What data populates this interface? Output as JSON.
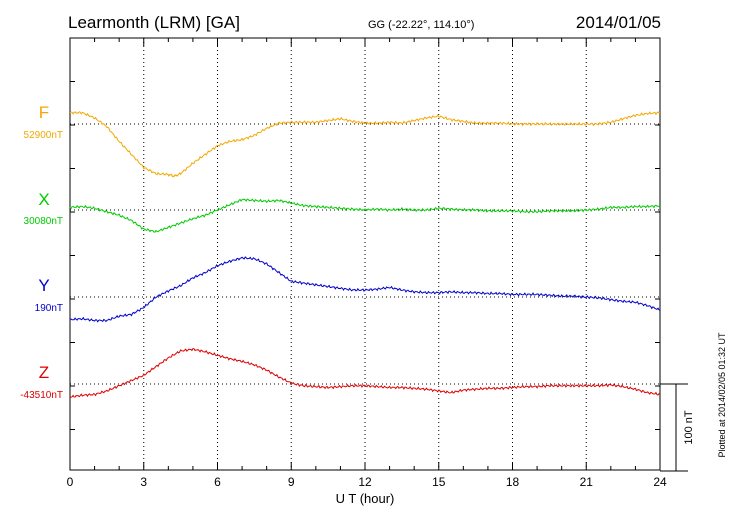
{
  "header": {
    "station": "Learmonth (LRM)  [GA]",
    "coords": "GG (-22.22°, 114.10°)",
    "date": "2014/01/05",
    "plotted": "Plotted at 2014/02/05 01:32 UT"
  },
  "chart_data": {
    "type": "line",
    "xlabel": "U T (hour)",
    "xlim": [
      0,
      24
    ],
    "xticks": [
      "0",
      "3",
      "6",
      "9",
      "12",
      "15",
      "18",
      "21",
      "24"
    ],
    "grid": true,
    "scale_bar_label": "100 nT",
    "scale_bar_nT": 100,
    "series": [
      {
        "name": "F",
        "baseline_label": "52900nT",
        "baseline_nT": 52900,
        "color": "#f2a800",
        "x": [
          0,
          0.5,
          1,
          1.5,
          2,
          2.5,
          3,
          3.5,
          4,
          4.25,
          4.5,
          5,
          5.5,
          6,
          6.5,
          7,
          7.5,
          8,
          8.5,
          9,
          9.5,
          10,
          10.5,
          11,
          11.5,
          12,
          12.5,
          13,
          13.5,
          14,
          14.5,
          15,
          15.5,
          16,
          16.5,
          17,
          17.5,
          18,
          18.5,
          19,
          19.5,
          20,
          20.5,
          21,
          21.5,
          22,
          22.5,
          23,
          23.5,
          24
        ],
        "offset": [
          13,
          13,
          7,
          -3,
          -20,
          -35,
          -50,
          -57,
          -58,
          -60,
          -57,
          -45,
          -35,
          -25,
          -20,
          -18,
          -13,
          -5,
          1,
          2,
          2,
          2,
          4,
          6,
          3,
          1,
          1,
          2,
          1,
          4,
          7,
          9,
          5,
          3,
          1,
          1,
          1,
          0,
          0,
          0,
          0,
          0,
          0,
          0,
          0,
          2,
          6,
          10,
          12,
          13
        ]
      },
      {
        "name": "X",
        "baseline_label": "30080nT",
        "baseline_nT": 30080,
        "color": "#00cc00",
        "x": [
          0,
          0.5,
          1,
          1.5,
          2,
          2.5,
          3,
          3.5,
          4,
          4.5,
          5,
          5.5,
          6,
          6.5,
          7,
          7.5,
          8,
          8.5,
          9,
          9.5,
          10,
          10.5,
          11,
          11.5,
          12,
          12.5,
          13,
          13.5,
          14,
          14.5,
          15,
          15.5,
          16,
          16.5,
          17,
          17.5,
          18,
          18.5,
          19,
          19.5,
          20,
          20.5,
          21,
          21.5,
          22,
          22.5,
          23,
          23.5,
          24
        ],
        "offset": [
          3,
          4,
          2,
          -2,
          -6,
          -12,
          -22,
          -25,
          -20,
          -15,
          -10,
          -6,
          0,
          6,
          12,
          11,
          10,
          11,
          8,
          5,
          4,
          3,
          2,
          1,
          0,
          1,
          0,
          1,
          0,
          0,
          2,
          1,
          0,
          0,
          -1,
          -1,
          -1,
          -2,
          -2,
          -1,
          -1,
          -1,
          0,
          1,
          3,
          3,
          4,
          4,
          5
        ]
      },
      {
        "name": "Y",
        "baseline_label": "190nT",
        "baseline_nT": 190,
        "color": "#0000cc",
        "x": [
          0,
          0.5,
          1,
          1.5,
          2,
          2.5,
          3,
          3.5,
          4,
          4.5,
          5,
          5.5,
          6,
          6.5,
          7,
          7.5,
          8,
          8.5,
          9,
          9.5,
          10,
          10.5,
          11,
          11.5,
          12,
          12.5,
          13,
          13.5,
          14,
          14.5,
          15,
          15.5,
          16,
          16.5,
          17,
          17.5,
          18,
          18.5,
          19,
          19.5,
          20,
          20.5,
          21,
          21.5,
          22,
          22.5,
          23,
          23.5,
          24
        ],
        "offset": [
          -26,
          -25,
          -27,
          -27,
          -22,
          -20,
          -12,
          0,
          7,
          13,
          22,
          28,
          36,
          41,
          45,
          44,
          38,
          28,
          18,
          16,
          14,
          12,
          10,
          8,
          8,
          9,
          11,
          8,
          6,
          5,
          5,
          6,
          5,
          5,
          4,
          4,
          3,
          3,
          3,
          2,
          1,
          1,
          0,
          -1,
          -3,
          -5,
          -6,
          -10,
          -15
        ]
      },
      {
        "name": "Z",
        "baseline_label": "-43510nT",
        "baseline_nT": -43510,
        "color": "#dd0000",
        "x": [
          0,
          0.5,
          1,
          1.5,
          2,
          2.5,
          3,
          3.5,
          4,
          4.5,
          5,
          5.5,
          6,
          6.5,
          7,
          7.5,
          8,
          8.5,
          9,
          9.5,
          10,
          10.5,
          11,
          11.5,
          12,
          12.5,
          13,
          13.5,
          14,
          14.5,
          15,
          15.5,
          16,
          16.5,
          17,
          17.5,
          18,
          18.5,
          19,
          19.5,
          20,
          20.5,
          21,
          21.5,
          22,
          22.5,
          23,
          23.5,
          24
        ],
        "offset": [
          -15,
          -13,
          -12,
          -8,
          -2,
          4,
          10,
          20,
          30,
          38,
          40,
          37,
          33,
          29,
          26,
          22,
          16,
          8,
          1,
          -2,
          -3,
          -4,
          -3,
          -2,
          -2,
          -3,
          -4,
          -4,
          -5,
          -6,
          -8,
          -10,
          -7,
          -6,
          -5,
          -5,
          -4,
          -3,
          -3,
          -2,
          -2,
          -2,
          -2,
          -2,
          -1,
          -3,
          -6,
          -10,
          -12
        ]
      }
    ]
  }
}
